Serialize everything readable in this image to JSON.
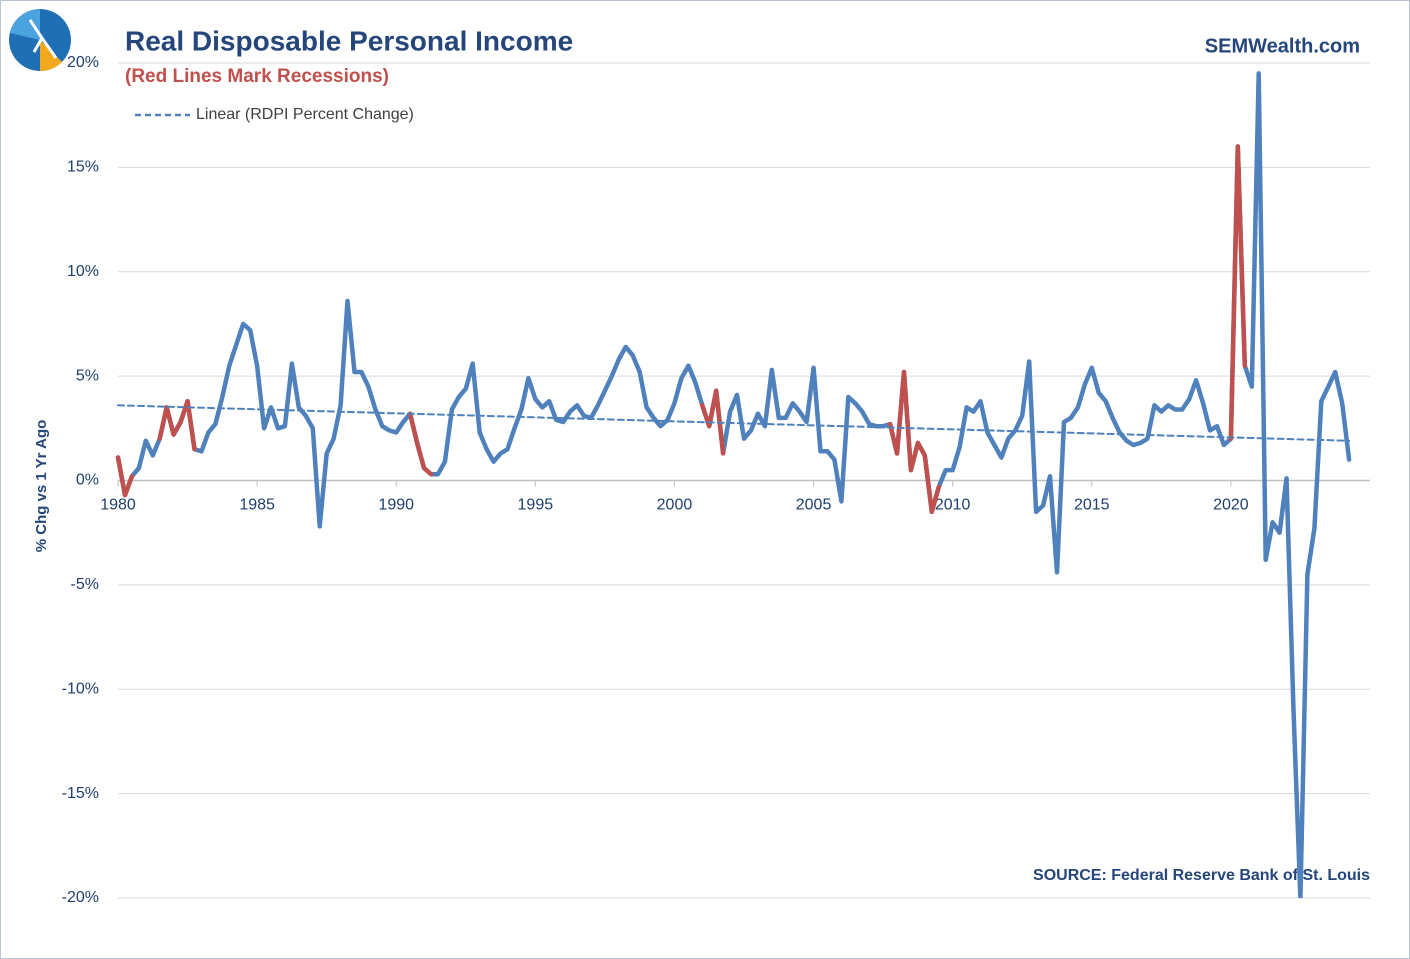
{
  "chart_data": {
    "type": "line",
    "title": "Real Disposable Personal Income",
    "subtitle": "(Red Lines Mark Recessions)",
    "brand": "SEMWealth.com",
    "source": "SOURCE:  Federal Reserve Bank of St. Louis",
    "y_label": "% Chg vs 1 Yr Ago",
    "xlim": [
      1980,
      2025
    ],
    "xticks": [
      1980,
      1985,
      1990,
      1995,
      2000,
      2005,
      2010,
      2015,
      2020
    ],
    "ylim": [
      -20,
      20
    ],
    "yticks": [
      {
        "value": -20,
        "label": "-20%"
      },
      {
        "value": -15,
        "label": "-15%"
      },
      {
        "value": -10,
        "label": "-10%"
      },
      {
        "value": -5,
        "label": "-5%"
      },
      {
        "value": 0,
        "label": "0%"
      },
      {
        "value": 5,
        "label": "5%"
      },
      {
        "value": 10,
        "label": "10%"
      },
      {
        "value": 15,
        "label": "15%"
      },
      {
        "value": 20,
        "label": "20%"
      }
    ],
    "grid": true,
    "legend": "top-left",
    "series": [
      {
        "color": "#4f81bd",
        "x": [
          1980,
          1980.25,
          1980.5,
          1980.75,
          1981,
          1981.25,
          1981.5,
          1981.75,
          1982,
          1982.25,
          1982.5,
          1982.75,
          1983,
          1983.25,
          1983.5,
          1983.75,
          1984,
          1984.25,
          1984.5,
          1984.75,
          1985,
          1985.25,
          1985.5,
          1985.75,
          1986,
          1986.25,
          1986.5,
          1986.75,
          1987,
          1987.25,
          1987.5,
          1987.75,
          1988,
          1988.25,
          1988.5,
          1988.75,
          1989,
          1989.25,
          1989.5,
          1989.75,
          1990,
          1990.25,
          1990.5,
          1990.75,
          1991,
          1991.25,
          1991.5,
          1991.75,
          1992,
          1992.25,
          1992.5,
          1992.75,
          1993,
          1993.25,
          1993.5,
          1993.75,
          1994,
          1994.25,
          1994.5,
          1994.75,
          1995,
          1995.25,
          1995.5,
          1995.75,
          1996,
          1996.25,
          1996.5,
          1996.75,
          1997,
          1997.25,
          1997.5,
          1997.75,
          1998,
          1998.25,
          1998.5,
          1998.75,
          1999,
          1999.25,
          1999.5,
          1999.75,
          2000,
          2000.25,
          2000.5,
          2000.75,
          2001,
          2001.25,
          2001.5,
          2001.75,
          2002,
          2002.25,
          2002.5,
          2002.75,
          2003,
          2003.25,
          2003.5,
          2003.75,
          2004,
          2004.25,
          2004.5,
          2004.75,
          2005,
          2005.25,
          2005.5,
          2005.75,
          2006,
          2006.25,
          2006.5,
          2006.75,
          2007,
          2007.25,
          2007.5,
          2007.75,
          2008,
          2008.25,
          2008.5,
          2008.75,
          2009,
          2009.25,
          2009.5,
          2009.75,
          2010,
          2010.25,
          2010.5,
          2010.75,
          2011,
          2011.25,
          2011.5,
          2011.75,
          2012,
          2012.25,
          2012.5,
          2012.75,
          2013,
          2013.25,
          2013.5,
          2013.75,
          2014,
          2014.25,
          2014.5,
          2014.75,
          2015,
          2015.25,
          2015.5,
          2015.75,
          2016,
          2016.25,
          2016.5,
          2016.75,
          2017,
          2017.25,
          2017.5,
          2017.75,
          2018,
          2018.25,
          2018.5,
          2018.75,
          2019,
          2019.25,
          2019.5,
          2019.75,
          2020,
          2020.25,
          2020.5,
          2020.75,
          2021,
          2021.25,
          2021.5,
          2021.75,
          2022,
          2022.25,
          2022.5,
          2022.75,
          2023,
          2023.25,
          2023.5,
          2023.75,
          2024,
          2024.25
        ],
        "values": [
          1.1,
          -0.7,
          0.2,
          0.6,
          1.9,
          1.2,
          2.0,
          3.5,
          2.2,
          2.8,
          3.8,
          1.5,
          1.4,
          2.3,
          2.7,
          4.0,
          5.5,
          6.5,
          7.5,
          7.2,
          5.5,
          2.5,
          3.5,
          2.5,
          2.6,
          5.6,
          3.5,
          3.1,
          2.5,
          -2.2,
          1.3,
          2.0,
          3.6,
          8.6,
          5.2,
          5.2,
          4.5,
          3.4,
          2.6,
          2.4,
          2.3,
          2.8,
          3.2,
          1.8,
          0.6,
          0.3,
          0.3,
          0.9,
          3.4,
          4.0,
          4.4,
          5.6,
          2.3,
          1.5,
          0.9,
          1.3,
          1.5,
          2.5,
          3.4,
          4.9,
          3.9,
          3.5,
          3.8,
          2.9,
          2.8,
          3.3,
          3.6,
          3.1,
          3.0,
          3.6,
          4.3,
          5.0,
          5.8,
          6.4,
          6.0,
          5.2,
          3.5,
          3.0,
          2.6,
          2.9,
          3.7,
          4.9,
          5.5,
          4.7,
          3.6,
          2.6,
          4.3,
          1.3,
          3.3,
          4.1,
          2.0,
          2.4,
          3.2,
          2.6,
          5.3,
          3.0,
          3.0,
          3.7,
          3.3,
          2.8,
          5.4,
          1.4,
          1.4,
          1.0,
          -1.0,
          4.0,
          3.7,
          3.3,
          2.7,
          2.6,
          2.6,
          2.7,
          1.3,
          5.2,
          0.5,
          1.8,
          1.2,
          -1.5,
          -0.3,
          0.5,
          0.5,
          1.6,
          3.5,
          3.3,
          3.8,
          2.3,
          1.7,
          1.1,
          2.0,
          2.4,
          3.1,
          5.7,
          -1.5,
          -1.2,
          0.2,
          -4.4,
          2.8,
          3.0,
          3.5,
          4.6,
          5.4,
          4.2,
          3.8,
          3.0,
          2.3,
          1.9,
          1.7,
          1.8,
          2.0,
          3.6,
          3.3,
          3.6,
          3.4,
          3.4,
          3.9,
          4.8,
          3.7,
          2.4,
          2.6,
          1.7,
          2.0,
          16.0,
          5.5,
          4.5,
          19.5,
          -3.8,
          -2.0,
          -2.5,
          0.1,
          -11.0,
          -20.0,
          -4.5,
          -2.3,
          3.8,
          4.5,
          5.2,
          3.7,
          1.0
        ]
      },
      {
        "color": "#c0504d",
        "x": [
          1980,
          1980.25,
          1980.5
        ],
        "values": [
          1.1,
          -0.7,
          0.2
        ]
      },
      {
        "color": "#c0504d",
        "x": [
          1981.5,
          1981.75,
          1982,
          1982.25,
          1982.5,
          1982.75
        ],
        "values": [
          2.0,
          3.5,
          2.2,
          2.8,
          3.8,
          1.5
        ]
      },
      {
        "color": "#c0504d",
        "x": [
          1990.5,
          1990.75,
          1991,
          1991.25
        ],
        "values": [
          3.2,
          1.8,
          0.6,
          0.3
        ]
      },
      {
        "color": "#c0504d",
        "x": [
          2001,
          2001.25,
          2001.5,
          2001.75
        ],
        "values": [
          3.6,
          2.6,
          4.3,
          1.3
        ]
      },
      {
        "color": "#c0504d",
        "x": [
          2007.75,
          2008,
          2008.25,
          2008.5,
          2008.75,
          2009,
          2009.25,
          2009.5
        ],
        "values": [
          2.7,
          1.3,
          5.2,
          0.5,
          1.8,
          1.2,
          -1.5,
          -0.3
        ]
      },
      {
        "color": "#c0504d",
        "x": [
          2020,
          2020.25,
          2020.5
        ],
        "values": [
          2.0,
          16.0,
          5.5
        ]
      },
      {
        "name": "Linear (RDPI Percent Change)",
        "color": "#4f81bd",
        "dash": true,
        "x": [
          1980,
          2024.25
        ],
        "values": [
          3.6,
          1.9
        ]
      }
    ]
  }
}
